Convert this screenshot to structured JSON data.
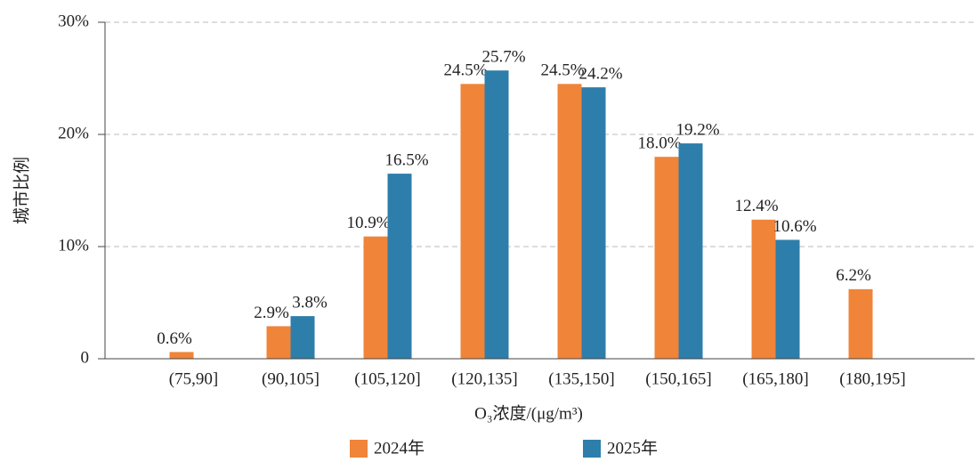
{
  "chart_data": {
    "type": "bar",
    "categories": [
      "(75,90]",
      "(90,105]",
      "(105,120]",
      "(120,135]",
      "(135,150]",
      "(150,165]",
      "(165,180]",
      "(180,195]"
    ],
    "series": [
      {
        "name": "2024年",
        "color": "#f08438",
        "values": [
          0.6,
          2.9,
          10.9,
          24.5,
          24.5,
          18.0,
          12.4,
          6.2
        ],
        "value_labels": [
          "0.6%",
          "2.9%",
          "10.9%",
          "24.5%",
          "24.5%",
          "18.0%",
          "12.4%",
          "6.2%"
        ]
      },
      {
        "name": "2025年",
        "color": "#2e7eab",
        "values": [
          null,
          3.8,
          16.5,
          25.7,
          24.2,
          19.2,
          10.6,
          null
        ],
        "value_labels": [
          null,
          "3.8%",
          "16.5%",
          "25.7%",
          "24.2%",
          "19.2%",
          "10.6%",
          null
        ]
      }
    ],
    "ylabel": "城市比例",
    "xlabel": "O₃浓度/(μg/m³)",
    "ylim": [
      0,
      30
    ],
    "yticks": [
      0,
      {
        "value": 10,
        "label": "10%"
      },
      {
        "value": 20,
        "label": "20%"
      },
      {
        "value": 30,
        "label": "30%"
      }
    ],
    "grid": true,
    "legend": "bottom"
  }
}
